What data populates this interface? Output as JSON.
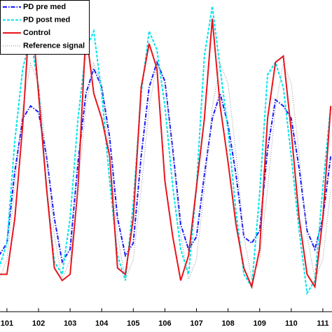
{
  "chart_data": {
    "type": "line",
    "x": [
      100.75,
      101,
      101.25,
      101.5,
      101.75,
      102,
      102.25,
      102.5,
      102.75,
      103,
      103.25,
      103.5,
      103.75,
      104,
      104.25,
      104.5,
      104.75,
      105,
      105.25,
      105.5,
      105.75,
      106,
      106.25,
      106.5,
      106.75,
      107,
      107.25,
      107.5,
      107.75,
      108,
      108.25,
      108.5,
      108.75,
      109,
      109.25,
      109.5,
      109.75,
      110,
      110.25,
      110.5,
      110.75,
      111,
      111.25
    ],
    "series": [
      {
        "name": "PD pre med",
        "color": "#1a1aff",
        "dash": "6,2,1.5,2",
        "values": [
          18,
          22,
          45,
          62,
          66,
          64,
          50,
          30,
          16,
          20,
          48,
          70,
          78,
          72,
          56,
          30,
          18,
          22,
          50,
          72,
          80,
          74,
          52,
          28,
          20,
          24,
          44,
          62,
          70,
          60,
          44,
          24,
          22,
          26,
          52,
          68,
          66,
          62,
          46,
          26,
          20,
          30,
          50
        ]
      },
      {
        "name": "PD post med",
        "color": "#00e5ee",
        "dash": "4,2",
        "values": [
          14,
          22,
          55,
          78,
          88,
          72,
          40,
          16,
          12,
          30,
          62,
          84,
          90,
          70,
          42,
          18,
          10,
          35,
          70,
          90,
          84,
          66,
          40,
          20,
          12,
          40,
          82,
          98,
          78,
          58,
          32,
          12,
          8,
          38,
          76,
          80,
          72,
          50,
          26,
          6,
          10,
          40,
          66
        ]
      },
      {
        "name": "Control",
        "color": "#e8141b",
        "dash": "",
        "values": [
          12,
          12,
          30,
          60,
          100,
          70,
          40,
          14,
          10,
          12,
          40,
          90,
          70,
          62,
          50,
          14,
          12,
          30,
          72,
          86,
          78,
          42,
          24,
          10,
          18,
          40,
          62,
          94,
          66,
          48,
          28,
          14,
          8,
          20,
          62,
          80,
          82,
          58,
          30,
          12,
          8,
          30,
          66
        ]
      },
      {
        "name": "Reference signal",
        "color": "#8c8c8c",
        "dash": "1,2",
        "values": [
          10.4,
          16.7,
          39.5,
          65.6,
          79.6,
          73.3,
          50.5,
          24.4,
          10.4,
          16.7,
          39.5,
          65.6,
          79.6,
          73.3,
          50.5,
          24.4,
          10.4,
          16.7,
          39.5,
          65.6,
          79.6,
          73.3,
          50.5,
          24.4,
          10.4,
          16.7,
          39.5,
          65.6,
          79.6,
          73.3,
          50.5,
          24.4,
          10.4,
          16.7,
          39.5,
          65.6,
          79.6,
          73.3,
          50.5,
          24.4,
          10.4,
          16.7,
          39.5
        ]
      }
    ],
    "xlim": [
      100.78,
      111.29
    ],
    "xticks": [
      101,
      102,
      103,
      104,
      105,
      106,
      107,
      108,
      109,
      110,
      111
    ],
    "ylim": [
      0,
      100
    ]
  }
}
